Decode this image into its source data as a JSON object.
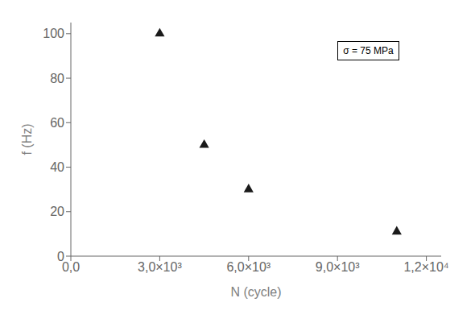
{
  "chart_data": {
    "type": "scatter",
    "x": [
      3000,
      4500,
      6000,
      11000
    ],
    "values": [
      100,
      50,
      30,
      11
    ],
    "xlabel": "N (cycle)",
    "ylabel": "f (Hz)",
    "xlim": [
      0,
      12500
    ],
    "ylim": [
      0,
      105
    ],
    "xticks": [
      {
        "value": 0,
        "label": "0,0"
      },
      {
        "value": 3000,
        "label": "3,0×10³"
      },
      {
        "value": 6000,
        "label": "6,0×10³"
      },
      {
        "value": 9000,
        "label": "9,0×10³"
      },
      {
        "value": 12000,
        "label": "1,2×10⁴"
      }
    ],
    "yticks": [
      0,
      20,
      40,
      60,
      80,
      100
    ],
    "annotation": "σ = 75 MPa",
    "marker": "triangle",
    "color": "#1a1a1a",
    "grid": false
  }
}
